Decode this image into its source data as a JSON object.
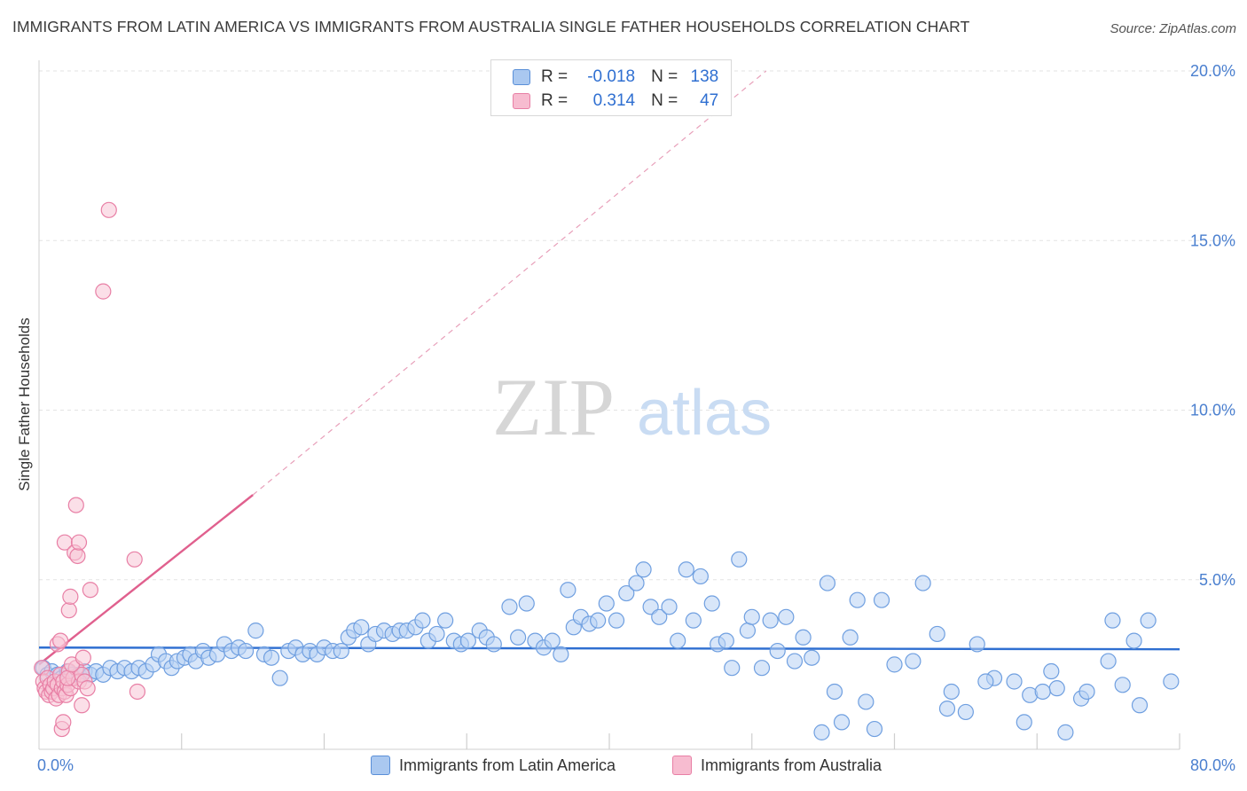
{
  "title": "IMMIGRANTS FROM LATIN AMERICA VS IMMIGRANTS FROM AUSTRALIA SINGLE FATHER HOUSEHOLDS CORRELATION CHART",
  "source": "Source: ZipAtlas.com",
  "watermark": {
    "zip": "ZIP",
    "atlas": "atlas"
  },
  "legend": {
    "rows": [
      {
        "r_label": "R =",
        "r_value": "-0.018",
        "n_label": "N =",
        "n_value": "138",
        "color": "#aac8f0",
        "border": "#5a8fd8"
      },
      {
        "r_label": "R =",
        "r_value": "0.314",
        "n_label": "N =",
        "n_value": "47",
        "color": "#f7bcd0",
        "border": "#e87fa5"
      }
    ]
  },
  "bottom_legend": {
    "series1": "Immigrants from Latin America",
    "series2": "Immigrants from Australia"
  },
  "chart_data": {
    "type": "scatter",
    "title": "IMMIGRANTS FROM LATIN AMERICA VS IMMIGRANTS FROM AUSTRALIA SINGLE FATHER HOUSEHOLDS CORRELATION CHART",
    "xlabel": "",
    "ylabel": "Single Father Households",
    "xlim": [
      0,
      80
    ],
    "ylim": [
      0,
      20
    ],
    "x_tick_labels": [
      "0.0%",
      "80.0%"
    ],
    "y_tick_values": [
      5,
      10,
      15,
      20
    ],
    "y_tick_labels": [
      "5.0%",
      "10.0%",
      "15.0%",
      "20.0%"
    ],
    "grid": true,
    "legend_position": "top-center",
    "series": [
      {
        "name": "Immigrants from Latin America",
        "color": "#6f9fe0",
        "fill": "#b8d2f4",
        "trend": {
          "x": [
            0,
            80
          ],
          "y": [
            3.0,
            2.95
          ]
        },
        "points": [
          [
            0.3,
            2.4
          ],
          [
            0.6,
            2.2
          ],
          [
            0.9,
            2.3
          ],
          [
            1.3,
            2.2
          ],
          [
            1.6,
            2.1
          ],
          [
            2.0,
            2.3
          ],
          [
            2.3,
            2.2
          ],
          [
            2.8,
            2.2
          ],
          [
            3.2,
            2.3
          ],
          [
            3.6,
            2.2
          ],
          [
            4.0,
            2.3
          ],
          [
            4.5,
            2.2
          ],
          [
            5.0,
            2.4
          ],
          [
            5.5,
            2.3
          ],
          [
            6.0,
            2.4
          ],
          [
            6.5,
            2.3
          ],
          [
            7.0,
            2.4
          ],
          [
            7.5,
            2.3
          ],
          [
            8.0,
            2.5
          ],
          [
            8.4,
            2.8
          ],
          [
            8.9,
            2.6
          ],
          [
            9.3,
            2.4
          ],
          [
            9.7,
            2.6
          ],
          [
            10.2,
            2.7
          ],
          [
            10.6,
            2.8
          ],
          [
            11.0,
            2.6
          ],
          [
            11.5,
            2.9
          ],
          [
            11.9,
            2.7
          ],
          [
            12.5,
            2.8
          ],
          [
            13.0,
            3.1
          ],
          [
            13.5,
            2.9
          ],
          [
            14.0,
            3.0
          ],
          [
            14.5,
            2.9
          ],
          [
            15.2,
            3.5
          ],
          [
            15.8,
            2.8
          ],
          [
            16.3,
            2.7
          ],
          [
            16.9,
            2.1
          ],
          [
            17.5,
            2.9
          ],
          [
            18.0,
            3.0
          ],
          [
            18.5,
            2.8
          ],
          [
            19.0,
            2.9
          ],
          [
            19.5,
            2.8
          ],
          [
            20.0,
            3.0
          ],
          [
            20.6,
            2.9
          ],
          [
            21.2,
            2.9
          ],
          [
            21.7,
            3.3
          ],
          [
            22.1,
            3.5
          ],
          [
            22.6,
            3.6
          ],
          [
            23.1,
            3.1
          ],
          [
            23.6,
            3.4
          ],
          [
            24.2,
            3.5
          ],
          [
            24.8,
            3.4
          ],
          [
            25.3,
            3.5
          ],
          [
            25.8,
            3.5
          ],
          [
            26.4,
            3.6
          ],
          [
            26.9,
            3.8
          ],
          [
            27.3,
            3.2
          ],
          [
            27.9,
            3.4
          ],
          [
            28.5,
            3.8
          ],
          [
            29.1,
            3.2
          ],
          [
            29.6,
            3.1
          ],
          [
            30.1,
            3.2
          ],
          [
            30.9,
            3.5
          ],
          [
            31.4,
            3.3
          ],
          [
            31.9,
            3.1
          ],
          [
            33.0,
            4.2
          ],
          [
            33.6,
            3.3
          ],
          [
            34.2,
            4.3
          ],
          [
            34.8,
            3.2
          ],
          [
            35.4,
            3.0
          ],
          [
            36.0,
            3.2
          ],
          [
            36.6,
            2.8
          ],
          [
            37.1,
            4.7
          ],
          [
            37.5,
            3.6
          ],
          [
            38.0,
            3.9
          ],
          [
            38.6,
            3.7
          ],
          [
            39.2,
            3.8
          ],
          [
            39.8,
            4.3
          ],
          [
            40.5,
            3.8
          ],
          [
            41.2,
            4.6
          ],
          [
            41.9,
            4.9
          ],
          [
            42.4,
            5.3
          ],
          [
            42.9,
            4.2
          ],
          [
            43.5,
            3.9
          ],
          [
            44.2,
            4.2
          ],
          [
            44.8,
            3.2
          ],
          [
            45.4,
            5.3
          ],
          [
            45.9,
            3.8
          ],
          [
            46.4,
            5.1
          ],
          [
            47.2,
            4.3
          ],
          [
            47.6,
            3.1
          ],
          [
            48.2,
            3.2
          ],
          [
            48.6,
            2.4
          ],
          [
            49.1,
            5.6
          ],
          [
            49.7,
            3.5
          ],
          [
            50.0,
            3.9
          ],
          [
            50.7,
            2.4
          ],
          [
            51.3,
            3.8
          ],
          [
            51.8,
            2.9
          ],
          [
            52.4,
            3.9
          ],
          [
            53.0,
            2.6
          ],
          [
            53.6,
            3.3
          ],
          [
            54.2,
            2.7
          ],
          [
            54.9,
            0.5
          ],
          [
            55.3,
            4.9
          ],
          [
            55.8,
            1.7
          ],
          [
            56.3,
            0.8
          ],
          [
            56.9,
            3.3
          ],
          [
            57.4,
            4.4
          ],
          [
            58.0,
            1.4
          ],
          [
            58.6,
            0.6
          ],
          [
            59.1,
            4.4
          ],
          [
            60.0,
            2.5
          ],
          [
            61.3,
            2.6
          ],
          [
            62.0,
            4.9
          ],
          [
            63.0,
            3.4
          ],
          [
            63.7,
            1.2
          ],
          [
            64.0,
            1.7
          ],
          [
            65.0,
            1.1
          ],
          [
            65.8,
            3.1
          ],
          [
            67.0,
            2.1
          ],
          [
            68.4,
            2.0
          ],
          [
            69.1,
            0.8
          ],
          [
            69.5,
            1.6
          ],
          [
            71.0,
            2.3
          ],
          [
            71.4,
            1.8
          ],
          [
            72.0,
            0.5
          ],
          [
            73.1,
            1.5
          ],
          [
            73.5,
            1.7
          ],
          [
            75.3,
            3.8
          ],
          [
            76.0,
            1.9
          ],
          [
            76.8,
            3.2
          ],
          [
            77.2,
            1.3
          ],
          [
            77.8,
            3.8
          ],
          [
            79.4,
            2.0
          ],
          [
            75.0,
            2.6
          ],
          [
            70.4,
            1.7
          ],
          [
            66.4,
            2.0
          ]
        ]
      },
      {
        "name": "Immigrants from Australia",
        "color": "#e87fa5",
        "fill": "#f8c4d6",
        "trend": {
          "x": [
            0,
            15
          ],
          "y": [
            2.5,
            7.5
          ]
        },
        "trend_extension": {
          "x": [
            15,
            51
          ],
          "y": [
            7.5,
            20
          ]
        },
        "points": [
          [
            0.2,
            2.4
          ],
          [
            0.3,
            2.0
          ],
          [
            0.4,
            1.8
          ],
          [
            0.5,
            1.7
          ],
          [
            0.6,
            2.1
          ],
          [
            0.7,
            1.6
          ],
          [
            0.8,
            1.9
          ],
          [
            0.9,
            1.7
          ],
          [
            1.0,
            1.8
          ],
          [
            1.1,
            2.0
          ],
          [
            1.2,
            1.5
          ],
          [
            1.3,
            1.9
          ],
          [
            1.4,
            1.6
          ],
          [
            1.5,
            2.2
          ],
          [
            1.6,
            1.8
          ],
          [
            1.7,
            2.0
          ],
          [
            1.8,
            1.7
          ],
          [
            1.9,
            1.6
          ],
          [
            2.0,
            1.9
          ],
          [
            2.1,
            2.3
          ],
          [
            2.2,
            1.8
          ],
          [
            2.4,
            2.1
          ],
          [
            2.6,
            2.4
          ],
          [
            2.8,
            2.0
          ],
          [
            3.0,
            2.2
          ],
          [
            3.2,
            2.0
          ],
          [
            3.4,
            1.8
          ],
          [
            1.3,
            3.1
          ],
          [
            1.5,
            3.2
          ],
          [
            1.6,
            0.6
          ],
          [
            1.7,
            0.8
          ],
          [
            1.8,
            6.1
          ],
          [
            2.0,
            2.1
          ],
          [
            2.1,
            4.1
          ],
          [
            2.2,
            4.5
          ],
          [
            2.3,
            2.5
          ],
          [
            2.5,
            5.8
          ],
          [
            2.6,
            7.2
          ],
          [
            2.7,
            5.7
          ],
          [
            2.8,
            6.1
          ],
          [
            3.0,
            1.3
          ],
          [
            3.1,
            2.7
          ],
          [
            3.6,
            4.7
          ],
          [
            4.5,
            13.5
          ],
          [
            4.9,
            15.9
          ],
          [
            6.7,
            5.6
          ],
          [
            6.9,
            1.7
          ]
        ]
      }
    ]
  }
}
